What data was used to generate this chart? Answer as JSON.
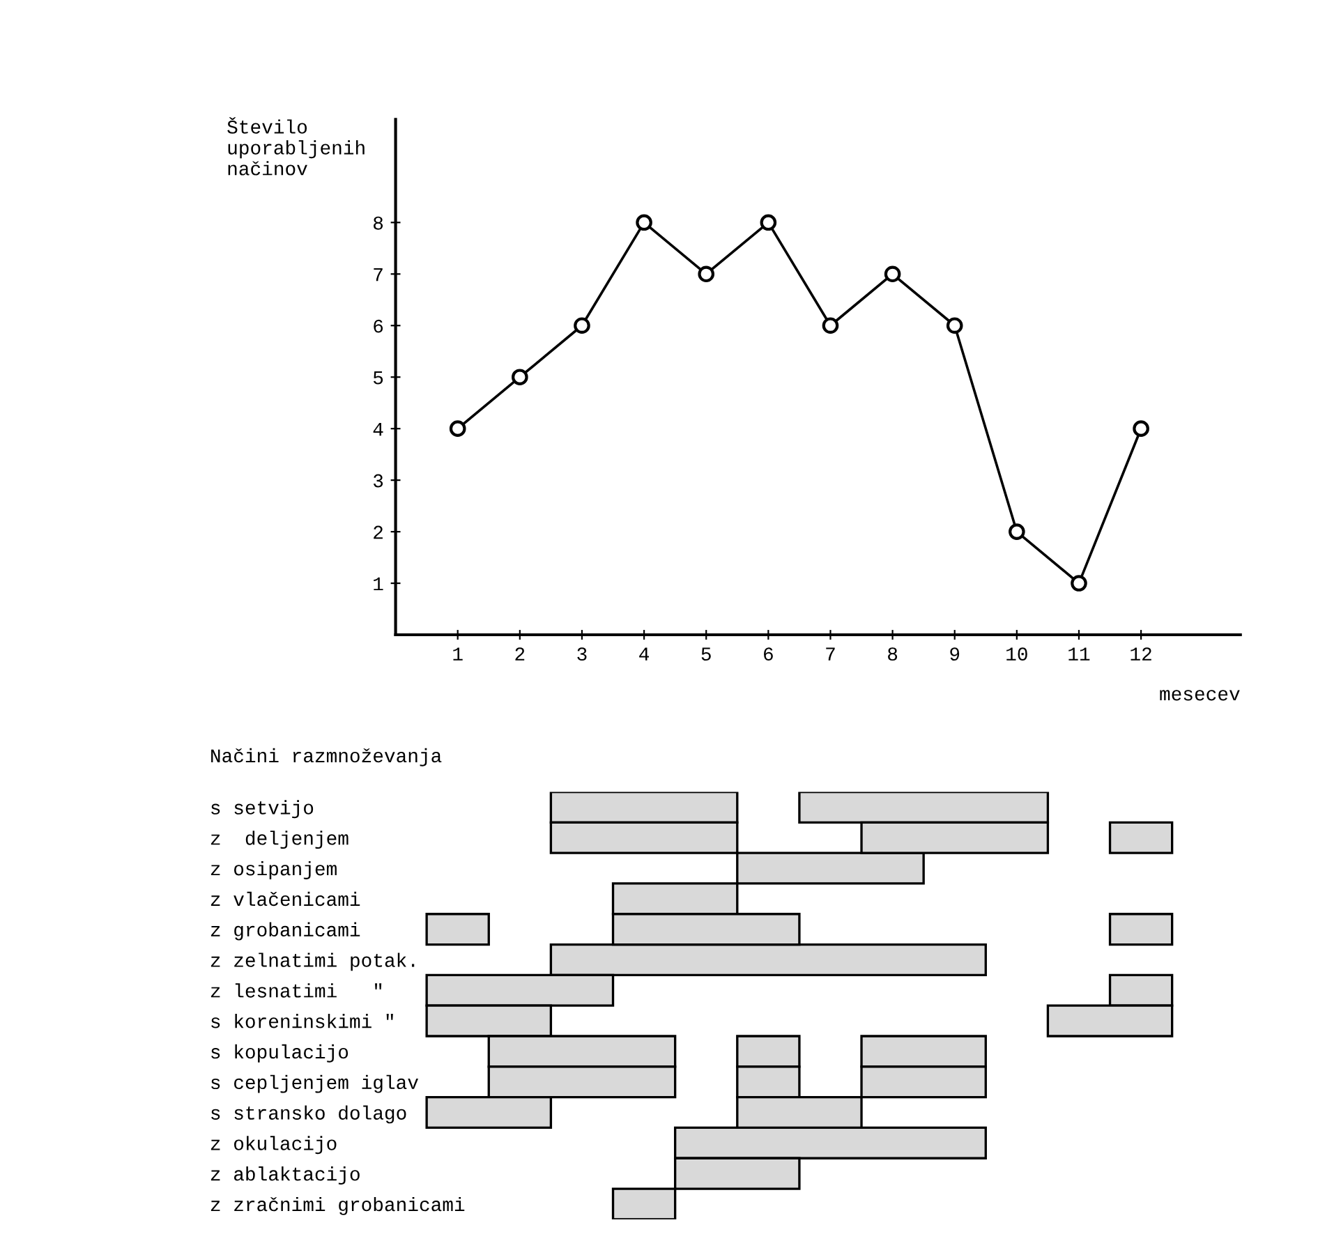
{
  "chart_data": [
    {
      "type": "line",
      "ylabel": "Število\nuporabljenih\nnačinov",
      "xlabel": "mesecev",
      "x": [
        1,
        2,
        3,
        4,
        5,
        6,
        7,
        8,
        9,
        10,
        11,
        12
      ],
      "series": [
        {
          "color": "#000000",
          "values": [
            4,
            5,
            6,
            8,
            7,
            8,
            6,
            7,
            6,
            2,
            1,
            4
          ]
        }
      ],
      "xlim": [
        0,
        13.6
      ],
      "ylim": [
        0,
        10
      ],
      "xticks": [
        1,
        2,
        3,
        4,
        5,
        6,
        7,
        8,
        9,
        10,
        11,
        12
      ],
      "yticks": [
        1,
        2,
        3,
        4,
        5,
        6,
        7,
        8
      ],
      "marker": "circle",
      "line_style": "solid",
      "grid": false
    },
    {
      "type": "bar",
      "orientation": "horizontal",
      "title": "Načini razmnoževanja",
      "categories": [
        "s setvijo",
        "z  deljenjem",
        "z osipanjem",
        "z vlačenicami",
        "z grobanicami",
        "z zelnatimi potak.",
        "z lesnatimi   \"",
        "s koreninskimi \"",
        "s kopulacijo",
        "s cepljenjem iglav",
        "s stransko dolago",
        "z okulacijo",
        "z ablaktacijo",
        "z zračnimi grobanicami"
      ],
      "series": [
        {
          "color": "#d9d9d9",
          "base": [
            2.5,
            2.5,
            5.5,
            3.5,
            0.5,
            2.5,
            0.5,
            0.5,
            1.5,
            1.5,
            0.5,
            4.5,
            4.5,
            3.5
          ],
          "values": [
            3,
            3,
            3,
            2,
            1,
            7,
            3,
            2,
            3,
            3,
            2,
            5,
            2,
            1
          ]
        },
        {
          "color": "#d9d9d9",
          "base": [
            6.5,
            7.5,
            null,
            null,
            3.5,
            null,
            11.5,
            10.5,
            5.5,
            5.5,
            5.5,
            null,
            null,
            null
          ],
          "values": [
            4,
            3,
            null,
            null,
            3,
            null,
            1,
            2,
            1,
            1,
            2,
            null,
            null,
            null
          ]
        },
        {
          "color": "#d9d9d9",
          "base": [
            null,
            11.5,
            null,
            null,
            11.5,
            null,
            null,
            null,
            7.5,
            7.5,
            null,
            null,
            null,
            null
          ],
          "values": [
            null,
            1,
            null,
            null,
            1,
            null,
            null,
            null,
            2,
            2,
            null,
            null,
            null,
            null
          ]
        }
      ],
      "xticks": [
        1,
        2,
        3,
        4,
        5,
        6,
        7,
        8,
        9,
        10,
        11,
        12
      ],
      "tick_labels": "y",
      "grid": false
    }
  ]
}
